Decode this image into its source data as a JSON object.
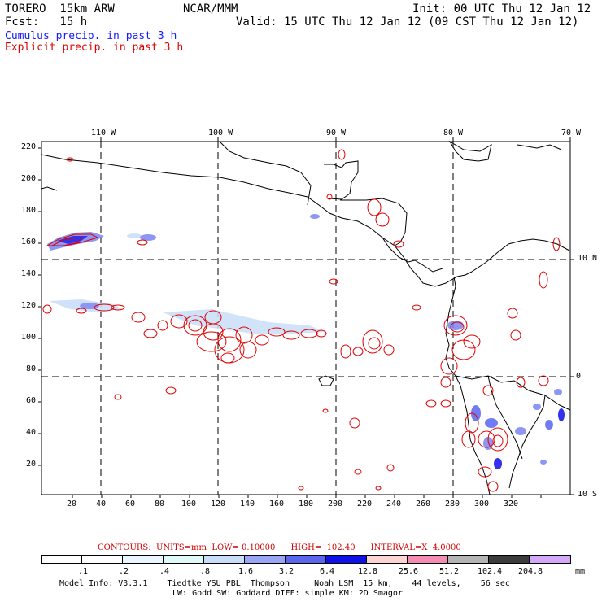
{
  "header": {
    "model": "TORERO  15km ARW",
    "org": "NCAR/MMM",
    "init": "Init: 00 UTC Thu 12 Jan 12",
    "fcst": "Fcst:   15 h",
    "valid": "Valid: 15 UTC Thu 12 Jan 12 (09 CST Thu 12 Jan 12)",
    "cumulus": "Cumulus precip. in past 3 h",
    "explicit": "Explicit precip. in past 3 h",
    "cumulus_color": "#1a1aff",
    "explicit_color": "#e00000"
  },
  "map": {
    "lon_labels": [
      "110 W",
      "100 W",
      "90 W",
      "80 W",
      "70 W"
    ],
    "lat_labels": [
      "10 N",
      "0",
      "10 S"
    ],
    "x_ticks": [
      "20",
      "40",
      "60",
      "80",
      "100",
      "120",
      "140",
      "160",
      "180",
      "200",
      "220",
      "240",
      "260",
      "280",
      "300",
      "320"
    ],
    "y_ticks": [
      "220",
      "200",
      "180",
      "160",
      "140",
      "120",
      "100",
      "80",
      "60",
      "40",
      "20"
    ]
  },
  "legend": {
    "contours_text": "CONTOURS:  UNITS=mm  LOW= 0.10000      HIGH=  102.40      INTERVAL=X  4.0000",
    "levels": [
      ".1",
      ".2",
      ".4",
      ".8",
      "1.6",
      "3.2",
      "6.4",
      "12.8",
      "25.6",
      "51.2",
      "102.4",
      "204.8"
    ],
    "unit": "mm",
    "colors": [
      "#ffffff",
      "#ffffff",
      "#eaf6ff",
      "#dff8f8",
      "#c8def8",
      "#9aa6f4",
      "#5a66f0",
      "#1010e8",
      "#fcd4d4",
      "#f48cb4",
      "#b4b4b4",
      "#3c3c3c",
      "#d4a8f8"
    ]
  },
  "footer": {
    "line1": "Model Info: V3.3.1    Tiedtke YSU PBL  Thompson     Noah LSM  15 km,    44 levels,    56 sec",
    "line2": "LW: Godd SW: Goddard DIFF: simple KM: 2D Smagor"
  }
}
